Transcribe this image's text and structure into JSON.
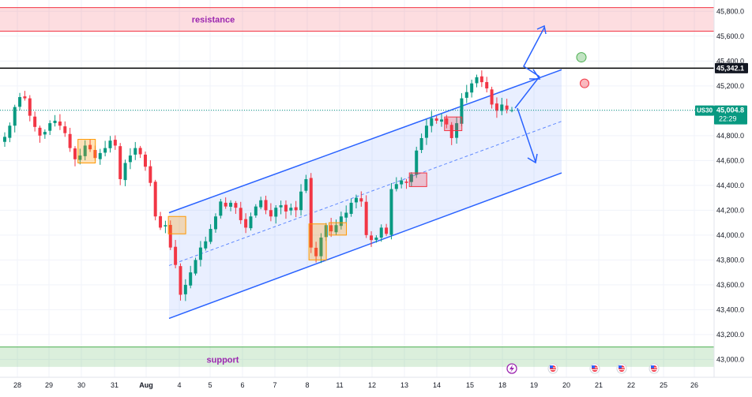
{
  "symbol": "US30",
  "current_price_label": "45,004.8",
  "countdown": "22:29",
  "level_label": "45,342.1",
  "zones": {
    "resistance": {
      "label": "resistance",
      "from": 45640,
      "to": 45830
    },
    "support": {
      "label": "support",
      "from": 42940,
      "to": 43100
    }
  },
  "colors": {
    "up": "#089981",
    "down": "#f23645",
    "channel": "#2962ff",
    "resistance": "#f23645",
    "support": "#4caf50",
    "label_text": "#9c27b0",
    "price_tag": "#089981"
  },
  "chart_data": {
    "type": "candlestick",
    "title": "",
    "ylim": [
      42920,
      45840
    ],
    "y_ticks": [
      43000,
      43200,
      43400,
      43600,
      43800,
      44000,
      44200,
      44400,
      44600,
      44800,
      45000,
      45200,
      45400,
      45600,
      45800
    ],
    "y_tick_labels": [
      "43,000.0",
      "43,200.0",
      "43,400.0",
      "43,600.0",
      "43,800.0",
      "44,000.0",
      "44,200.0",
      "44,400.0",
      "44,600.0",
      "44,800.0",
      "45,000.0",
      "45,200.0",
      "45,400.0",
      "45,600.0",
      "45,800.0"
    ],
    "x_ticks": [
      "28",
      "29",
      "30",
      "31",
      "Aug",
      "4",
      "5",
      "6",
      "7",
      "8",
      "11",
      "12",
      "13",
      "14",
      "15",
      "18",
      "19",
      "20",
      "21",
      "22",
      "25",
      "26"
    ],
    "horizontal_level": 45342.1,
    "current_price": 45004.8,
    "close_series": [
      44790,
      44880,
      45030,
      45110,
      45100,
      44960,
      44870,
      44800,
      44830,
      44900,
      44920,
      44880,
      44820,
      44700,
      44610,
      44640,
      44720,
      44690,
      44620,
      44660,
      44700,
      44760,
      44720,
      44450,
      44580,
      44640,
      44700,
      44650,
      44550,
      44420,
      44150,
      44060,
      44080,
      43900,
      43760,
      43520,
      43600,
      43700,
      43800,
      43900,
      43950,
      44050,
      44150,
      44270,
      44230,
      44260,
      44220,
      44120,
      44060,
      44150,
      44230,
      44280,
      44200,
      44150,
      44220,
      44240,
      44190,
      44220,
      44200,
      44350,
      44450,
      43900,
      43830,
      43980,
      44080,
      44030,
      44080,
      44150,
      44180,
      44260,
      44300,
      44270,
      44000,
      43960,
      43980,
      44060,
      44010,
      44370,
      44410,
      44440,
      44420,
      44490,
      44680,
      44780,
      44880,
      44940,
      44920,
      44930,
      44890,
      44780,
      44900,
      45100,
      45150,
      45220,
      45270,
      45230,
      45180,
      45050,
      45000,
      45050,
      45010,
      45005
    ],
    "channel": {
      "upper": [
        [
          43720,
          44180
        ],
        [
          44850,
          45330
        ]
      ],
      "lower": [
        [
          43720,
          43330
        ],
        [
          44850,
          44500
        ]
      ],
      "mid": [
        [
          43720,
          43755
        ],
        [
          44850,
          44915
        ]
      ]
    },
    "markers": [
      {
        "color": "green",
        "price": 45430
      },
      {
        "color": "red",
        "price": 45220
      }
    ]
  }
}
